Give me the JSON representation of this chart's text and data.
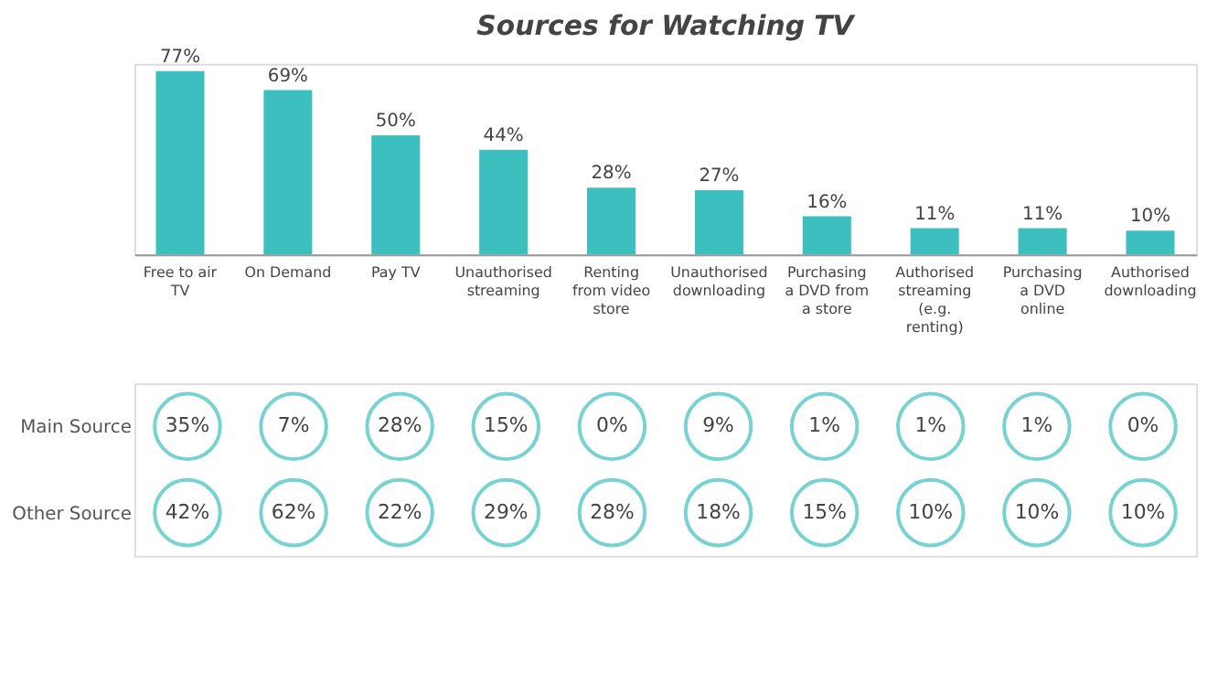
{
  "chart_data": [
    {
      "type": "bar",
      "title": "Sources for Watching TV",
      "categories": [
        "Free to air TV",
        "On Demand",
        "Pay TV",
        "Unauthorised streaming",
        "Renting from video store",
        "Unauthorised downloading",
        "Purchasing a DVD from a store",
        "Authorised streaming (e.g. renting)",
        "Purchasing a DVD online",
        "Authorised downloading"
      ],
      "values": [
        77,
        69,
        50,
        44,
        28,
        27,
        16,
        11,
        11,
        10
      ],
      "value_labels": [
        "77%",
        "69%",
        "50%",
        "44%",
        "28%",
        "27%",
        "16%",
        "11%",
        "11%",
        "10%"
      ],
      "color": "#3ebfbf",
      "grid": false
    },
    {
      "type": "heatmap",
      "categories": [
        null,
        null,
        null,
        null,
        null,
        null,
        null,
        null,
        null,
        null
      ],
      "y_categories": [
        "Main Source",
        "Other Source"
      ],
      "cells": [
        [
          35,
          7,
          28,
          15,
          0,
          9,
          1,
          1,
          1,
          0
        ],
        [
          42,
          62,
          22,
          29,
          28,
          18,
          15,
          10,
          10,
          10
        ]
      ],
      "cell_labels": [
        [
          "35%",
          "7%",
          "28%",
          "15%",
          "0%",
          "9%",
          "1%",
          "1%",
          "1%",
          "0%"
        ],
        [
          "42%",
          "62%",
          "22%",
          "29%",
          "28%",
          "18%",
          "15%",
          "10%",
          "10%",
          "10%"
        ]
      ],
      "color": "#3ebfbf"
    }
  ]
}
